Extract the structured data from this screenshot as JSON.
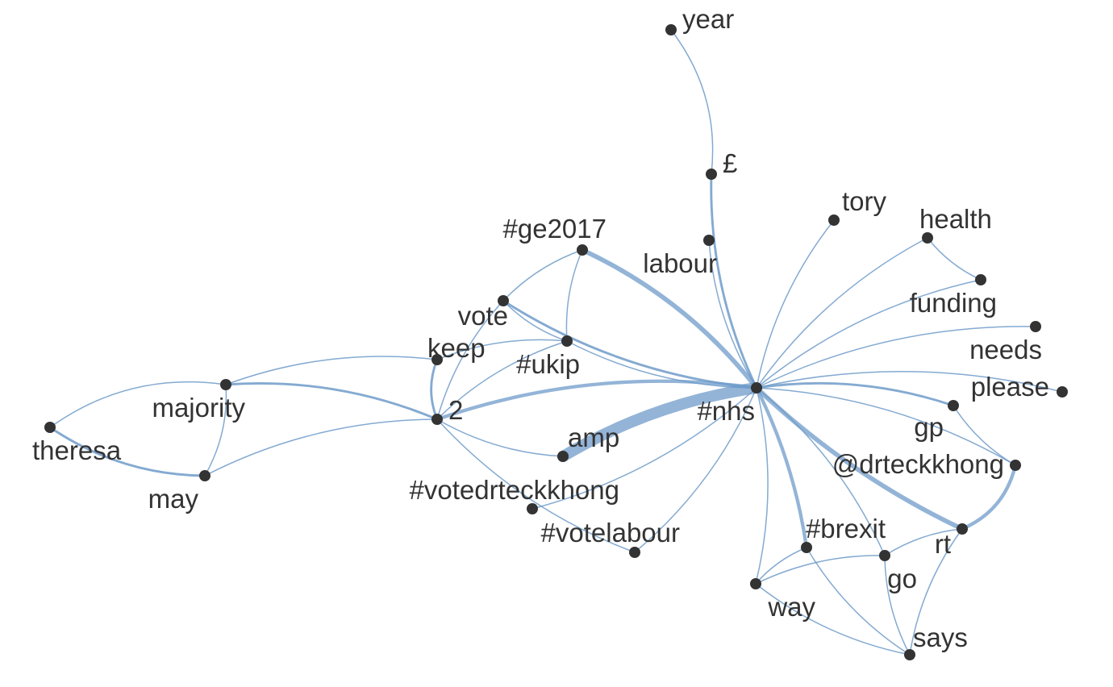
{
  "colors": {
    "edge": "#6f9bc9",
    "node": "#333333",
    "label": "#333333",
    "background": "#ffffff"
  },
  "nodes": [
    {
      "id": "year",
      "label": "year"
    },
    {
      "id": "pound",
      "label": "£"
    },
    {
      "id": "tory",
      "label": "tory"
    },
    {
      "id": "health",
      "label": "health"
    },
    {
      "id": "labour",
      "label": "labour"
    },
    {
      "id": "ge2017",
      "label": "#ge2017"
    },
    {
      "id": "funding",
      "label": "funding"
    },
    {
      "id": "vote",
      "label": "vote"
    },
    {
      "id": "needs",
      "label": "needs"
    },
    {
      "id": "keep",
      "label": "keep"
    },
    {
      "id": "ukip",
      "label": "#ukip"
    },
    {
      "id": "please",
      "label": "please"
    },
    {
      "id": "majority",
      "label": "majority"
    },
    {
      "id": "nhs",
      "label": "#nhs"
    },
    {
      "id": "two",
      "label": "2"
    },
    {
      "id": "gp",
      "label": "gp"
    },
    {
      "id": "theresa",
      "label": "theresa"
    },
    {
      "id": "amp",
      "label": "amp"
    },
    {
      "id": "drteckkhong",
      "label": "@drteckkhong"
    },
    {
      "id": "may",
      "label": "may"
    },
    {
      "id": "votedrteckkhong",
      "label": "#votedrteckkhong"
    },
    {
      "id": "votelabour",
      "label": "#votelabour"
    },
    {
      "id": "brexit",
      "label": "#brexit"
    },
    {
      "id": "rt",
      "label": "rt"
    },
    {
      "id": "go",
      "label": "go"
    },
    {
      "id": "way",
      "label": "way"
    },
    {
      "id": "says",
      "label": "says"
    }
  ],
  "edges": [
    {
      "source": "year",
      "target": "pound",
      "weight": 1
    },
    {
      "source": "pound",
      "target": "nhs",
      "weight": 2
    },
    {
      "source": "tory",
      "target": "nhs",
      "weight": 1
    },
    {
      "source": "health",
      "target": "nhs",
      "weight": 1
    },
    {
      "source": "health",
      "target": "funding",
      "weight": 1
    },
    {
      "source": "funding",
      "target": "nhs",
      "weight": 1
    },
    {
      "source": "labour",
      "target": "nhs",
      "weight": 1
    },
    {
      "source": "needs",
      "target": "nhs",
      "weight": 1
    },
    {
      "source": "please",
      "target": "nhs",
      "weight": 1
    },
    {
      "source": "gp",
      "target": "nhs",
      "weight": 2
    },
    {
      "source": "gp",
      "target": "drteckkhong",
      "weight": 1
    },
    {
      "source": "drteckkhong",
      "target": "nhs",
      "weight": 1
    },
    {
      "source": "drteckkhong",
      "target": "rt",
      "weight": 3
    },
    {
      "source": "rt",
      "target": "nhs",
      "weight": 4
    },
    {
      "source": "rt",
      "target": "says",
      "weight": 1
    },
    {
      "source": "rt",
      "target": "go",
      "weight": 1
    },
    {
      "source": "ge2017",
      "target": "nhs",
      "weight": 4
    },
    {
      "source": "ge2017",
      "target": "vote",
      "weight": 1
    },
    {
      "source": "ge2017",
      "target": "ukip",
      "weight": 1
    },
    {
      "source": "vote",
      "target": "nhs",
      "weight": 2
    },
    {
      "source": "vote",
      "target": "ukip",
      "weight": 1
    },
    {
      "source": "vote",
      "target": "two",
      "weight": 1
    },
    {
      "source": "keep",
      "target": "two",
      "weight": 2
    },
    {
      "source": "keep",
      "target": "majority",
      "weight": 1
    },
    {
      "source": "ukip",
      "target": "nhs",
      "weight": 1
    },
    {
      "source": "ukip",
      "target": "two",
      "weight": 1
    },
    {
      "source": "ukip",
      "target": "keep",
      "weight": 1
    },
    {
      "source": "two",
      "target": "nhs",
      "weight": 3
    },
    {
      "source": "two",
      "target": "amp",
      "weight": 1
    },
    {
      "source": "two",
      "target": "majority",
      "weight": 2
    },
    {
      "source": "two",
      "target": "may",
      "weight": 1
    },
    {
      "source": "two",
      "target": "votelabour",
      "weight": 1
    },
    {
      "source": "amp",
      "target": "nhs",
      "weight": 10
    },
    {
      "source": "majority",
      "target": "theresa",
      "weight": 1
    },
    {
      "source": "majority",
      "target": "may",
      "weight": 1
    },
    {
      "source": "theresa",
      "target": "may",
      "weight": 2
    },
    {
      "source": "votedrteckkhong",
      "target": "nhs",
      "weight": 1
    },
    {
      "source": "votelabour",
      "target": "nhs",
      "weight": 1
    },
    {
      "source": "brexit",
      "target": "nhs",
      "weight": 3
    },
    {
      "source": "brexit",
      "target": "way",
      "weight": 1
    },
    {
      "source": "brexit",
      "target": "says",
      "weight": 1
    },
    {
      "source": "go",
      "target": "nhs",
      "weight": 1
    },
    {
      "source": "go",
      "target": "way",
      "weight": 1
    },
    {
      "source": "go",
      "target": "says",
      "weight": 1
    },
    {
      "source": "way",
      "target": "nhs",
      "weight": 1
    },
    {
      "source": "way",
      "target": "says",
      "weight": 1
    }
  ]
}
